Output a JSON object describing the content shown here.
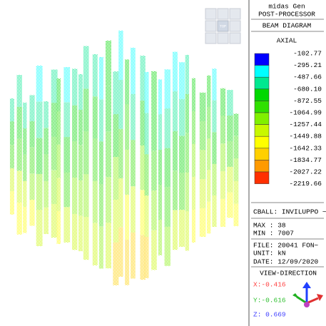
{
  "header": {
    "program": "midas Gen",
    "module": "POST-PROCESSOR",
    "diagram": "BEAM DIAGRAM",
    "component": "AXIAL"
  },
  "view_cube": "TOP",
  "legend": {
    "values": [
      "-102.77",
      "-295.21",
      "-487.66",
      "-680.10",
      "-872.55",
      "-1064.99",
      "-1257.44",
      "-1449.88",
      "-1642.33",
      "-1834.77",
      "-2027.22",
      "-2219.66"
    ],
    "colors": [
      "#0000ff",
      "#00ffff",
      "#00e890",
      "#00d800",
      "#30e000",
      "#80f000",
      "#c8f800",
      "#ffff00",
      "#ffd000",
      "#ff9a00",
      "#ff3000"
    ]
  },
  "info": {
    "cball": "CBALL: INVILUPPO ~",
    "max": "MAX : 38",
    "min": "MIN : 7007",
    "file": "FILE: 20041 FON~",
    "unit": "UNIT: kN",
    "date": "DATE: 12/09/2020",
    "view_direction": "VIEW-DIRECTION",
    "x": "X:-0.416",
    "y": "Y:-0.616",
    "z": "Z: 0.669"
  }
}
